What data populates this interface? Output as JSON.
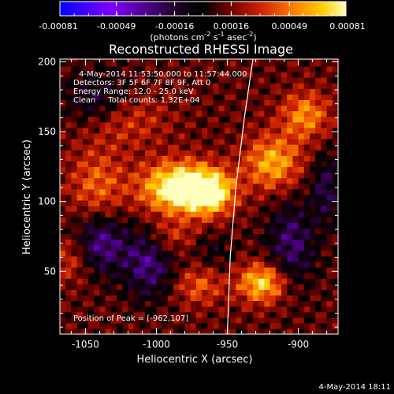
{
  "chart_data": {
    "type": "heatmap",
    "title": "Reconstructed RHESSI Image",
    "xlabel": "Heliocentric X (arcsec)",
    "ylabel": "Heliocentric Y (arcsec)",
    "xlim": [
      -1068,
      -872
    ],
    "ylim": [
      5,
      202
    ],
    "x_ticks": [
      -1050,
      -1000,
      -950,
      -900
    ],
    "x_tick_labels": [
      "-1050",
      "-1000",
      "-950",
      "-900"
    ],
    "y_ticks": [
      50,
      100,
      150,
      200
    ],
    "y_tick_labels": [
      "50",
      "100",
      "150",
      "200"
    ],
    "colorbar": {
      "range": [
        -0.00081,
        0.00081
      ],
      "ticks": [
        -0.00081,
        -0.00049,
        -0.00016,
        0.00016,
        0.00049,
        0.00081
      ],
      "tick_labels": [
        "-0.00081",
        "-0.00049",
        "-0.00016",
        "0.00016",
        "0.00049",
        "0.00081"
      ],
      "units": "(photons cm",
      "units_exp1": "-2",
      "units_mid": " s",
      "units_exp2": "-1",
      "units_end": " asec",
      "units_exp3": "-2",
      "units_close": ")",
      "colors": [
        "#0000ff",
        "#8000ff",
        "#1a001a",
        "#000000",
        "#600000",
        "#cc2000",
        "#ff8000",
        "#ffd000",
        "#ffffc0"
      ]
    },
    "peak": {
      "x": -962,
      "y": 107
    },
    "limb_curve": [
      [
        -950,
        5
      ],
      [
        -948,
        60
      ],
      [
        -944,
        110
      ],
      [
        -938,
        160
      ],
      [
        -932,
        202
      ]
    ],
    "sources": [
      {
        "x": -985,
        "y": 110,
        "amp": 0.00078,
        "sx": 18,
        "sy": 13
      },
      {
        "x": -962,
        "y": 107,
        "amp": 0.00065,
        "sx": 12,
        "sy": 11
      },
      {
        "x": -1042,
        "y": 112,
        "amp": 0.00032,
        "sx": 14,
        "sy": 18
      },
      {
        "x": -1028,
        "y": 160,
        "amp": 0.00035,
        "sx": 22,
        "sy": 14
      },
      {
        "x": -925,
        "y": 42,
        "amp": 0.0006,
        "sx": 12,
        "sy": 10
      },
      {
        "x": -918,
        "y": 128,
        "amp": 0.0005,
        "sx": 14,
        "sy": 14
      },
      {
        "x": -895,
        "y": 162,
        "amp": 0.00042,
        "sx": 12,
        "sy": 12
      },
      {
        "x": -1060,
        "y": 60,
        "amp": 0.0003,
        "sx": 10,
        "sy": 12
      },
      {
        "x": -990,
        "y": 75,
        "amp": 0.00022,
        "sx": 12,
        "sy": 8
      },
      {
        "x": -970,
        "y": 40,
        "amp": 0.0003,
        "sx": 12,
        "sy": 10
      },
      {
        "x": -1040,
        "y": 170,
        "amp": -0.0004,
        "sx": 18,
        "sy": 15
      },
      {
        "x": -1040,
        "y": 70,
        "amp": -0.00045,
        "sx": 15,
        "sy": 15
      },
      {
        "x": -1005,
        "y": 55,
        "amp": -0.0004,
        "sx": 12,
        "sy": 17
      },
      {
        "x": -905,
        "y": 70,
        "amp": -0.00038,
        "sx": 12,
        "sy": 22
      },
      {
        "x": -880,
        "y": 110,
        "amp": -0.0003,
        "sx": 8,
        "sy": 18
      },
      {
        "x": -960,
        "y": 65,
        "amp": -0.00015,
        "sx": 10,
        "sy": 10
      }
    ]
  },
  "header": {
    "time_range": "4-May-2014 11:53:50.000 to 11:57:44.000",
    "detectors": "Detectors: 3F 5F 6F 7F 8F 9F, Att 0",
    "energy": "Energy Range: 12.0 - 25.0 keV",
    "clean": "Clean     Total counts: 1.32E+04"
  },
  "peak_label": "Position of Peak = [-962,107]",
  "footer_timestamp": "4-May-2014 18:11"
}
